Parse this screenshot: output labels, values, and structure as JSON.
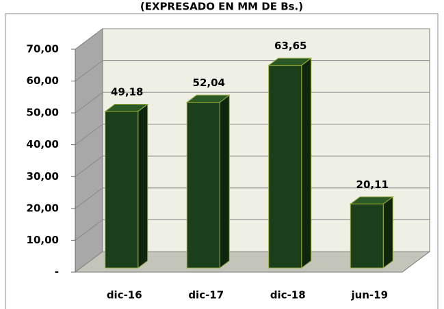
{
  "chart_data": {
    "type": "bar",
    "title": "(EXPRESADO EN MM DE Bs.)",
    "categories": [
      "dic-16",
      "dic-17",
      "dic-18",
      "jun-19"
    ],
    "values": [
      49.18,
      52.04,
      63.65,
      20.11
    ],
    "value_labels": [
      "49,18",
      "52,04",
      "63,65",
      "20,11"
    ],
    "color": "#1b3f1b",
    "ylim": [
      0,
      70
    ],
    "yticks": [
      {
        "value": 0,
        "label": "-"
      },
      {
        "value": 10,
        "label": "10,00"
      },
      {
        "value": 20,
        "label": "20,00"
      },
      {
        "value": 30,
        "label": "30,00"
      },
      {
        "value": 40,
        "label": "40,00"
      },
      {
        "value": 50,
        "label": "50,00"
      },
      {
        "value": 60,
        "label": "60,00"
      },
      {
        "value": 70,
        "label": "70,00"
      }
    ],
    "grid": true
  }
}
